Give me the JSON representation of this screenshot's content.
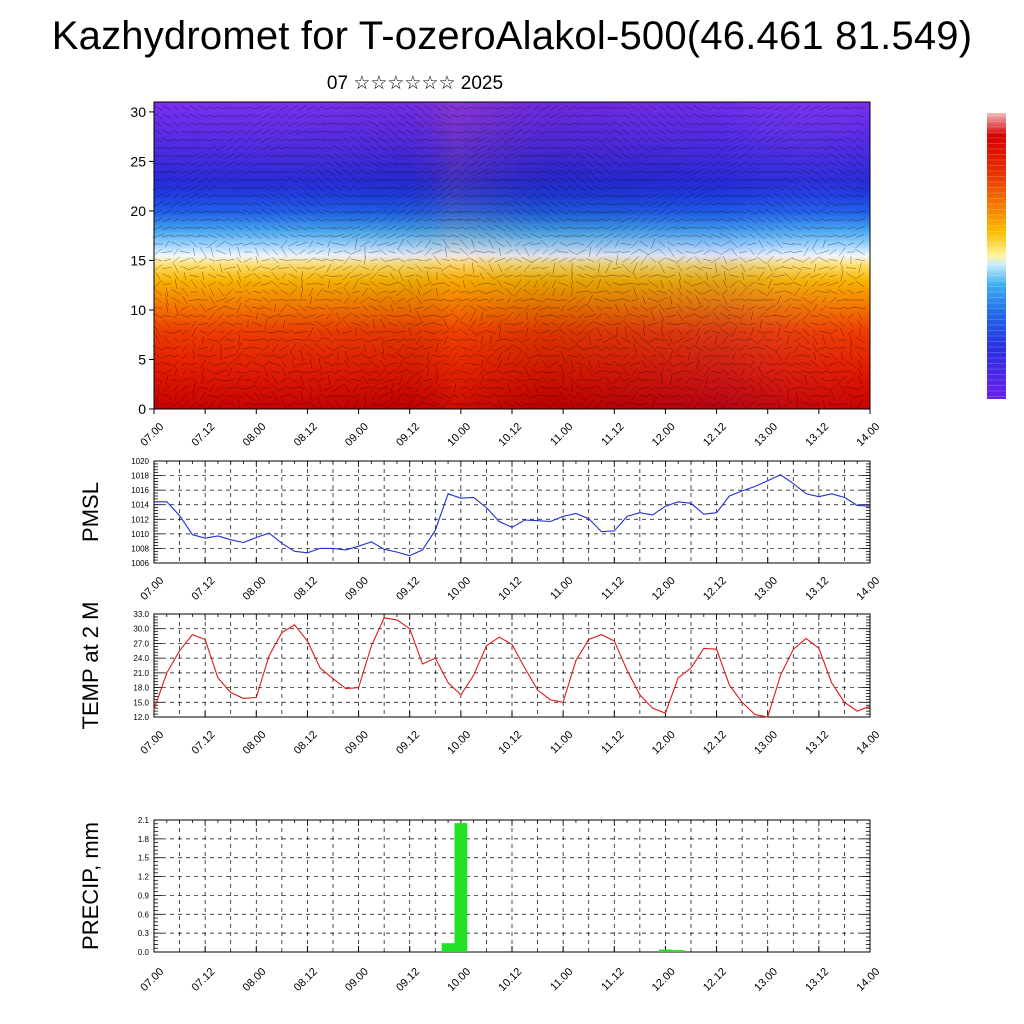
{
  "header": {
    "title": "Kazhydromet for T-ozeroAlakol-500(46.461 81.549)",
    "subtitle": "07 ☆☆☆☆☆☆ 2025"
  },
  "time_ticks": [
    "07.00",
    "07.12",
    "08.00",
    "08.12",
    "09.00",
    "09.12",
    "10.00",
    "10.12",
    "11.00",
    "11.12",
    "12.00",
    "12.12",
    "13.00",
    "13.12",
    "14.00"
  ],
  "colors": {
    "pmsl_line": "#1f2fd6",
    "temp_line": "#e01818",
    "precip_bar": "#22e022",
    "grid": "#000000"
  },
  "chart_data": [
    {
      "type": "heatmap",
      "name": "cross-section",
      "x_ticks": [
        "07.00",
        "07.12",
        "08.00",
        "08.12",
        "09.00",
        "09.12",
        "10.00",
        "10.12",
        "11.00",
        "11.12",
        "12.00",
        "12.12",
        "13.00",
        "13.12",
        "14.00"
      ],
      "y_ticks": [
        0,
        5,
        10,
        15,
        20,
        25,
        30
      ],
      "ylim": [
        0,
        31
      ],
      "colormap": "warm-to-cold (red bottom, purple top)",
      "overlay": "wind vectors"
    },
    {
      "type": "line",
      "ylabel": "PMSL",
      "ylim": [
        1006,
        1020
      ],
      "y_ticks": [
        1006,
        1008,
        1010,
        1012,
        1014,
        1016,
        1018,
        1020
      ],
      "x_ticks": [
        "07.00",
        "07.12",
        "08.00",
        "08.12",
        "09.00",
        "09.12",
        "10.00",
        "10.12",
        "11.00",
        "11.12",
        "12.00",
        "12.12",
        "13.00",
        "13.12",
        "14.00"
      ],
      "step_hours": 3,
      "values": [
        1014.4,
        1014.4,
        1012.5,
        1009.9,
        1009.4,
        1009.7,
        1009.2,
        1008.8,
        1009.5,
        1010.1,
        1008.7,
        1007.6,
        1007.4,
        1008.0,
        1008.0,
        1007.8,
        1008.3,
        1008.9,
        1007.9,
        1007.5,
        1007.0,
        1007.8,
        1010.5,
        1015.5,
        1014.9,
        1015.0,
        1013.6,
        1011.7,
        1010.9,
        1011.9,
        1011.8,
        1011.7,
        1012.4,
        1012.8,
        1012.1,
        1010.3,
        1010.4,
        1012.4,
        1012.9,
        1012.6,
        1013.8,
        1014.4,
        1014.2,
        1012.7,
        1012.9,
        1015.2,
        1015.9,
        1016.5,
        1017.3,
        1018.1,
        1016.9,
        1015.5,
        1015.1,
        1015.5,
        1015.0,
        1013.9,
        1013.8
      ]
    },
    {
      "type": "line",
      "ylabel": "TEMP at 2 M",
      "ylim": [
        12.0,
        33.0
      ],
      "y_ticks": [
        "12.0",
        "15.0",
        "18.0",
        "21.0",
        "24.0",
        "27.0",
        "30.0",
        "33.0"
      ],
      "x_ticks": [
        "07.00",
        "07.12",
        "08.00",
        "08.12",
        "09.00",
        "09.12",
        "10.00",
        "10.12",
        "11.00",
        "11.12",
        "12.00",
        "12.12",
        "13.00",
        "13.12",
        "14.00"
      ],
      "step_hours": 3,
      "values": [
        13.5,
        21.0,
        25.5,
        28.8,
        27.8,
        20.0,
        17.0,
        15.8,
        16.0,
        24.5,
        29.2,
        30.8,
        27.5,
        22.0,
        19.8,
        17.8,
        18.0,
        26.5,
        32.2,
        31.8,
        30.0,
        22.8,
        24.0,
        19.0,
        16.5,
        20.5,
        26.5,
        28.3,
        26.8,
        22.0,
        17.5,
        15.5,
        15.0,
        23.5,
        27.8,
        28.8,
        27.5,
        21.5,
        16.5,
        13.8,
        12.8,
        20.0,
        22.0,
        26.0,
        25.8,
        18.5,
        15.0,
        12.5,
        12.0,
        20.5,
        25.8,
        28.0,
        26.0,
        19.0,
        15.0,
        13.2,
        14.2
      ]
    },
    {
      "type": "bar",
      "ylabel": "PRECIP, mm",
      "ylim": [
        0,
        2.1
      ],
      "y_ticks": [
        "0.0",
        "0.3",
        "0.6",
        "0.9",
        "1.2",
        "1.5",
        "1.8",
        "2.1"
      ],
      "x_ticks": [
        "07.00",
        "07.12",
        "08.00",
        "08.12",
        "09.00",
        "09.12",
        "10.00",
        "10.12",
        "11.00",
        "11.12",
        "12.00",
        "12.12",
        "13.00",
        "13.12",
        "14.00"
      ],
      "step_hours": 3,
      "bars": [
        {
          "hour": 69,
          "value": 0.14
        },
        {
          "hour": 72,
          "value": 2.05
        },
        {
          "hour": 120,
          "value": 0.04
        },
        {
          "hour": 123,
          "value": 0.03
        }
      ]
    }
  ]
}
